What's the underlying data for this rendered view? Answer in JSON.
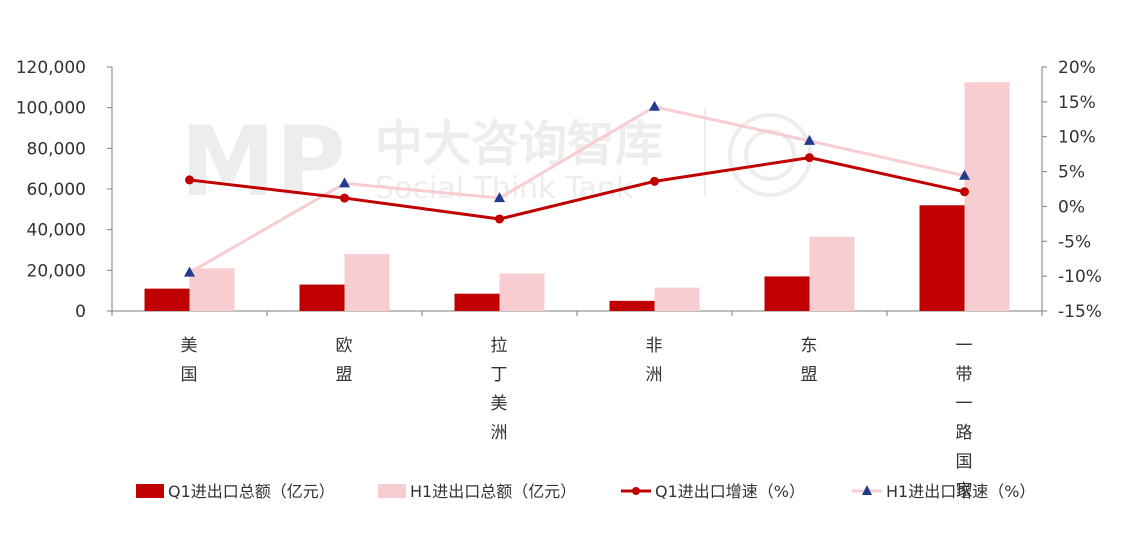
{
  "chart_data": {
    "type": "bar",
    "categories": [
      "美国",
      "欧盟",
      "拉丁美洲",
      "非洲",
      "东盟",
      "一带一路国家"
    ],
    "series": [
      {
        "name": "Q1进出口总额（亿元）",
        "type": "bar",
        "axis": "left",
        "color": "#c00000",
        "values": [
          11000,
          13000,
          8500,
          5000,
          17000,
          52000
        ]
      },
      {
        "name": "H1进出口总额（亿元）",
        "type": "bar",
        "axis": "left",
        "color": "#f8cdd2",
        "values": [
          21000,
          28000,
          18500,
          11500,
          36500,
          112500
        ]
      },
      {
        "name": "Q1进出口增速（%）",
        "type": "line",
        "axis": "right",
        "color": "#c00000",
        "marker": "circle",
        "values": [
          3.8,
          1.2,
          -1.8,
          3.6,
          7.0,
          2.1
        ]
      },
      {
        "name": "H1进出口增速（%）",
        "type": "line",
        "axis": "right",
        "color": "#f8cdd2",
        "marker": "triangle",
        "values": [
          -9.5,
          3.3,
          1.2,
          14.3,
          9.4,
          4.4
        ]
      }
    ],
    "y_left": {
      "min": 0,
      "max": 120000,
      "step": 20000,
      "ticks": [
        "0",
        "20,000",
        "40,000",
        "60,000",
        "80,000",
        "100,000",
        "120,000"
      ]
    },
    "y_right": {
      "min": -15,
      "max": 20,
      "step": 5,
      "ticks": [
        "-15%",
        "-10%",
        "-5%",
        "0%",
        "5%",
        "10%",
        "15%",
        "20%"
      ]
    },
    "legend_position": "bottom",
    "grid": false
  },
  "watermark": {
    "logo": "MP",
    "cn": "中大咨询智库",
    "en": "Social Think Tank"
  }
}
